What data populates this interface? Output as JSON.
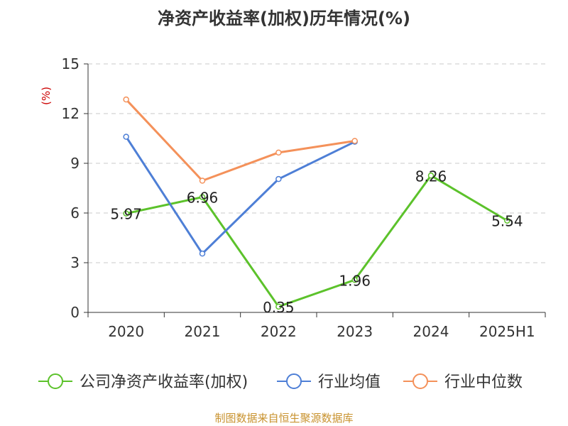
{
  "chart_data": {
    "type": "line",
    "title": "净资产收益率(加权)历年情况(%)",
    "ylabel": "(%)",
    "categories": [
      "2020",
      "2021",
      "2022",
      "2023",
      "2024",
      "2025H1"
    ],
    "ylim": [
      0,
      15
    ],
    "yticks": [
      0,
      3,
      6,
      9,
      12,
      15
    ],
    "grid": true,
    "legend_position": "bottom",
    "series": [
      {
        "name": "公司净资产收益率(加权)",
        "color": "#5cc22b",
        "values": [
          5.97,
          6.96,
          0.35,
          1.96,
          8.26,
          5.54
        ],
        "labels": [
          "5.97",
          "6.96",
          "0.35",
          "1.96",
          "8.26",
          "5.54"
        ]
      },
      {
        "name": "行业均值",
        "color": "#4e7fd6",
        "values": [
          10.6,
          3.55,
          8.05,
          10.3,
          null,
          null
        ]
      },
      {
        "name": "行业中位数",
        "color": "#f4915a",
        "values": [
          12.85,
          7.95,
          9.65,
          10.35,
          null,
          null
        ]
      }
    ]
  },
  "source": "制图数据来自恒生聚源数据库"
}
